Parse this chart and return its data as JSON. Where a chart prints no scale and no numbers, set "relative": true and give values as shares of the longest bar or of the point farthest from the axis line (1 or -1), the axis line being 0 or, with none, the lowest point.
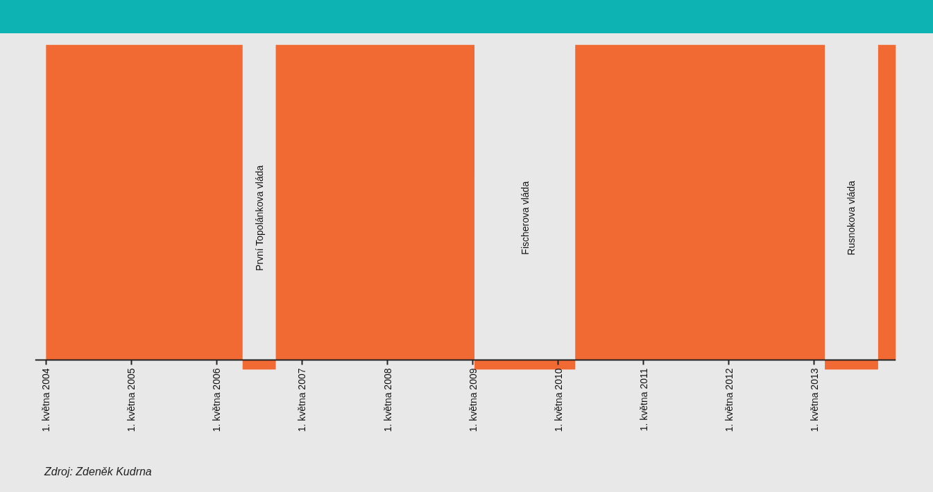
{
  "chart_data": {
    "type": "area",
    "relative": true,
    "color": "#f26a33",
    "x": [
      "2004-05-01",
      "2004-05-01",
      "2006-08-20",
      "2006-08-20",
      "2007-01-09",
      "2007-01-09",
      "2009-05-08",
      "2009-05-08",
      "2010-07-13",
      "2010-07-13",
      "2013-06-15",
      "2013-06-15",
      "2014-01-29",
      "2014-01-29",
      "2014-04-15",
      "2014-04-15"
    ],
    "values": [
      0,
      1,
      1,
      -0.03,
      -0.03,
      1,
      1,
      -0.03,
      -0.03,
      1,
      1,
      -0.03,
      -0.03,
      1,
      1,
      0
    ],
    "xlim": [
      "2004-03-15",
      "2014-04-15"
    ],
    "xticks": [
      {
        "value": "2004-05-01",
        "label": "1. května 2004"
      },
      {
        "value": "2005-05-01",
        "label": "1. května 2005"
      },
      {
        "value": "2006-05-01",
        "label": "1. května 2006"
      },
      {
        "value": "2007-05-01",
        "label": "1. května 2007"
      },
      {
        "value": "2008-05-01",
        "label": "1. května 2008"
      },
      {
        "value": "2009-05-01",
        "label": "1. května 2009"
      },
      {
        "value": "2010-05-01",
        "label": "1. května 2010"
      },
      {
        "value": "2011-05-01",
        "label": "1. května 2011"
      },
      {
        "value": "2012-05-01",
        "label": "1. května 2012"
      },
      {
        "value": "2013-05-01",
        "label": "1. května 2013"
      }
    ],
    "annotations": [
      "První Topolánkova vláda",
      "Fischerova vláda",
      "Rusnokova vláda",
      "Zdroj: Zdeněk Kudrna"
    ]
  }
}
